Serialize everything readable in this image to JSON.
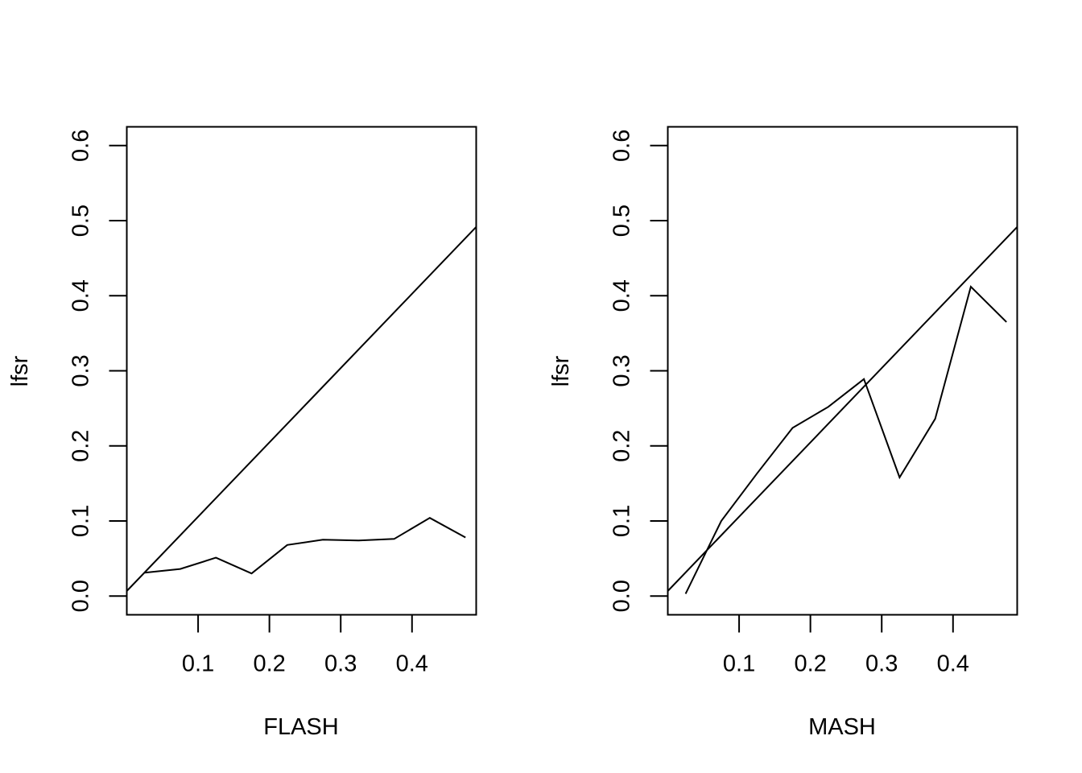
{
  "chart_data": [
    {
      "type": "line",
      "title": "",
      "xlabel": "FLASH",
      "ylabel": "lfsr",
      "xlim": [
        0.0,
        0.49
      ],
      "ylim": [
        -0.025,
        0.625
      ],
      "xticks": [
        "0.1",
        "0.2",
        "0.3",
        "0.4"
      ],
      "yticks": [
        "0.0",
        "0.1",
        "0.2",
        "0.3",
        "0.4",
        "0.5",
        "0.6"
      ],
      "grid": false,
      "series": [
        {
          "x": [
            0.025,
            0.075,
            0.125,
            0.175,
            0.225,
            0.275,
            0.325,
            0.375,
            0.425,
            0.475
          ],
          "y": [
            0.031,
            0.036,
            0.051,
            0.03,
            0.068,
            0.075,
            0.074,
            0.076,
            0.104,
            0.078
          ]
        },
        {
          "x": [
            0.0,
            0.49
          ],
          "y": [
            0.0066,
            0.4917
          ]
        }
      ]
    },
    {
      "type": "line",
      "title": "",
      "xlabel": "MASH",
      "ylabel": "lfsr",
      "xlim": [
        0.0,
        0.49
      ],
      "ylim": [
        -0.025,
        0.625
      ],
      "xticks": [
        "0.1",
        "0.2",
        "0.3",
        "0.4"
      ],
      "yticks": [
        "0.0",
        "0.1",
        "0.2",
        "0.3",
        "0.4",
        "0.5",
        "0.6"
      ],
      "grid": false,
      "series": [
        {
          "x": [
            0.025,
            0.075,
            0.125,
            0.175,
            0.225,
            0.275,
            0.325,
            0.375,
            0.425,
            0.475
          ],
          "y": [
            0.003,
            0.1,
            0.163,
            0.224,
            0.252,
            0.289,
            0.158,
            0.236,
            0.412,
            0.365
          ]
        },
        {
          "x": [
            0.0,
            0.49
          ],
          "y": [
            0.0066,
            0.4917
          ]
        }
      ]
    }
  ]
}
